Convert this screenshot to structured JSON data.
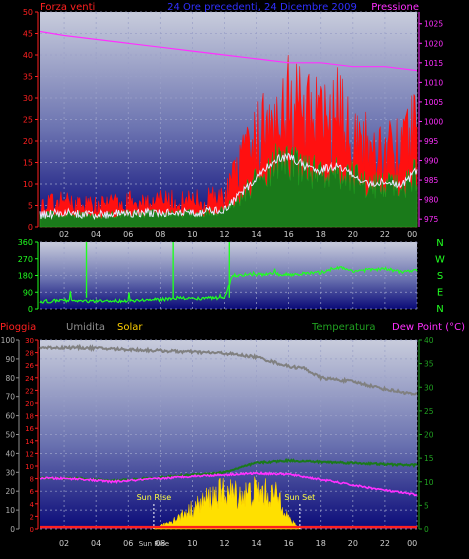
{
  "charts": {
    "wind_pressure": {
      "title_left": "Forza venti",
      "title_center": "24 Ore precedenti, 24 Dicembre 2009",
      "title_right": "Pressione",
      "left_axis": {
        "min": 0,
        "max": 50,
        "ticks": [
          0,
          5,
          10,
          15,
          20,
          25,
          30,
          35,
          40,
          45,
          50
        ]
      },
      "right_axis": {
        "min": 973,
        "max": 1028,
        "ticks": [
          975,
          980,
          985,
          990,
          995,
          1000,
          1005,
          1010,
          1015,
          1020,
          1025
        ]
      }
    },
    "direction": {
      "left_ticks": [
        0,
        90,
        180,
        270,
        360
      ],
      "compass": [
        "N",
        "W",
        "S",
        "E",
        "N"
      ]
    },
    "rain_hum_temp": {
      "label_rain": "Pioggia",
      "label_humidity": "Umidita",
      "label_solar": "Solar",
      "label_temp": "Temperatura",
      "label_dew": "Dew Point (°C)",
      "humidity_ticks": [
        0,
        10,
        20,
        30,
        40,
        50,
        60,
        70,
        80,
        90,
        100
      ],
      "rain_ticks": [
        0,
        2,
        4,
        6,
        8,
        10,
        12,
        14,
        16,
        18,
        20,
        22,
        24,
        26,
        28,
        30
      ],
      "temp_ticks": [
        0,
        5,
        10,
        15,
        20,
        25,
        30,
        35,
        40
      ],
      "sun_rise_label": "Sun Rise",
      "sun_set_label": "Sun Set",
      "sun_rise_hour": 7.6,
      "sun_set_hour": 16.7
    },
    "x_ticks": [
      "02",
      "04",
      "06",
      "08",
      "10",
      "12",
      "14",
      "16",
      "18",
      "20",
      "22",
      "00"
    ],
    "x_extra_label": "Sun Rise"
  },
  "chart_data": [
    {
      "type": "line",
      "x_unit": "hour",
      "x_range": [
        0.5,
        24.0
      ],
      "series": [
        {
          "name": "Forza venti",
          "values": [
            [
              0.5,
              5
            ],
            [
              2,
              6
            ],
            [
              4,
              5
            ],
            [
              6,
              6
            ],
            [
              8,
              6
            ],
            [
              10,
              6
            ],
            [
              12,
              7
            ],
            [
              13,
              14
            ],
            [
              14,
              20
            ],
            [
              15,
              28
            ],
            [
              16,
              30
            ],
            [
              17,
              26
            ],
            [
              18,
              24
            ],
            [
              19,
              26
            ],
            [
              20,
              22
            ],
            [
              21,
              18
            ],
            [
              22,
              19
            ],
            [
              23,
              17
            ],
            [
              24,
              24
            ]
          ]
        },
        {
          "name": "Pressione",
          "values": [
            [
              0.5,
              1023
            ],
            [
              2,
              1022
            ],
            [
              4,
              1021
            ],
            [
              6,
              1020
            ],
            [
              8,
              1019
            ],
            [
              10,
              1018
            ],
            [
              12,
              1017
            ],
            [
              14,
              1016
            ],
            [
              16,
              1015
            ],
            [
              18,
              1015
            ],
            [
              20,
              1014
            ],
            [
              22,
              1014
            ],
            [
              24,
              1013
            ]
          ]
        }
      ]
    },
    {
      "type": "line",
      "x_unit": "hour",
      "x_range": [
        0.5,
        24.0
      ],
      "ylim": [
        0,
        360
      ],
      "series": [
        {
          "name": "direction",
          "values": [
            [
              0.5,
              40
            ],
            [
              2,
              45
            ],
            [
              4,
              40
            ],
            [
              6,
              45
            ],
            [
              8,
              50
            ],
            [
              9,
              60
            ],
            [
              10,
              55
            ],
            [
              12,
              60
            ],
            [
              12.5,
              180
            ],
            [
              14,
              185
            ],
            [
              16,
              185
            ],
            [
              18,
              195
            ],
            [
              19,
              225
            ],
            [
              20,
              205
            ],
            [
              21,
              210
            ],
            [
              22,
              215
            ],
            [
              23,
              200
            ],
            [
              24,
              205
            ]
          ]
        }
      ]
    },
    {
      "type": "line",
      "x_unit": "hour",
      "x_range": [
        0.5,
        24.0
      ],
      "series": [
        {
          "name": "Umidita",
          "values": [
            [
              0.5,
              96
            ],
            [
              3,
              96
            ],
            [
              6,
              95
            ],
            [
              9,
              94
            ],
            [
              12,
              93
            ],
            [
              14,
              91
            ],
            [
              16,
              86
            ],
            [
              17,
              85
            ],
            [
              18,
              80
            ],
            [
              20,
              78
            ],
            [
              22,
              74
            ],
            [
              24,
              71
            ]
          ]
        },
        {
          "name": "Temperatura",
          "values": [
            [
              0.5,
              10.8
            ],
            [
              3,
              10.7
            ],
            [
              5,
              10.2
            ],
            [
              8,
              10.9
            ],
            [
              10,
              11.5
            ],
            [
              12,
              12
            ],
            [
              14,
              14
            ],
            [
              16,
              14.5
            ],
            [
              18,
              14.2
            ],
            [
              20,
              14
            ],
            [
              22,
              13.7
            ],
            [
              24,
              13.5
            ]
          ]
        },
        {
          "name": "Dew Point (°C)",
          "values": [
            [
              0.5,
              10.8
            ],
            [
              3,
              10.6
            ],
            [
              5,
              10
            ],
            [
              8,
              10.7
            ],
            [
              10,
              11.2
            ],
            [
              12,
              11.5
            ],
            [
              14,
              11.8
            ],
            [
              16,
              11.6
            ],
            [
              18,
              10.5
            ],
            [
              20,
              9.3
            ],
            [
              22,
              8.2
            ],
            [
              24,
              7.2
            ]
          ]
        },
        {
          "name": "Solar",
          "values": [
            [
              7.6,
              0
            ],
            [
              9,
              6
            ],
            [
              10,
              12
            ],
            [
              11,
              18
            ],
            [
              12,
              22
            ],
            [
              13,
              20
            ],
            [
              14,
              22
            ],
            [
              15,
              20
            ],
            [
              15.5,
              18
            ],
            [
              16,
              6
            ],
            [
              16.7,
              0
            ]
          ]
        },
        {
          "name": "Pioggia",
          "values": [
            [
              0.5,
              0.3
            ],
            [
              24,
              0.3
            ]
          ]
        }
      ]
    }
  ]
}
